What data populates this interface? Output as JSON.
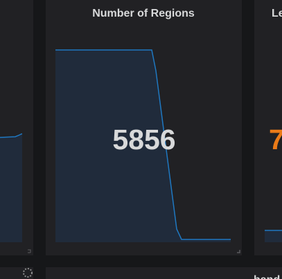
{
  "panels": [
    {
      "title": "Number of Regions",
      "value": "5856"
    },
    {
      "title": "Le",
      "value": "7"
    },
    {
      "title": "hand"
    }
  ]
}
